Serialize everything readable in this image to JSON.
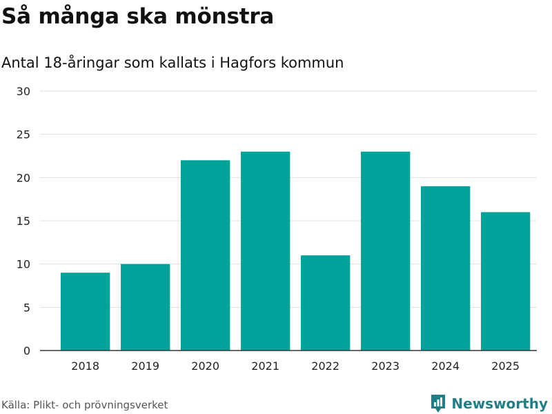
{
  "header": {
    "title": "Så många ska mönstra",
    "subtitle": "Antal 18-åringar som kallats i Hagfors kommun"
  },
  "footer": {
    "source": "Källa: Plikt- och prövningsverket",
    "brand": "Newsworthy"
  },
  "colors": {
    "bar": "#00a39a",
    "grid": "#dddddd",
    "axis": "#333333",
    "brand": "#1f7f86"
  },
  "chart_data": {
    "type": "bar",
    "title": "Så många ska mönstra",
    "subtitle": "Antal 18-åringar som kallats i Hagfors kommun",
    "xlabel": "",
    "ylabel": "",
    "categories": [
      "2018",
      "2019",
      "2020",
      "2021",
      "2022",
      "2023",
      "2024",
      "2025"
    ],
    "values": [
      9,
      10,
      22,
      23,
      11,
      23,
      19,
      16
    ],
    "ylim": [
      0,
      30
    ],
    "yticks": [
      0,
      5,
      10,
      15,
      20,
      25,
      30
    ],
    "grid": true
  }
}
